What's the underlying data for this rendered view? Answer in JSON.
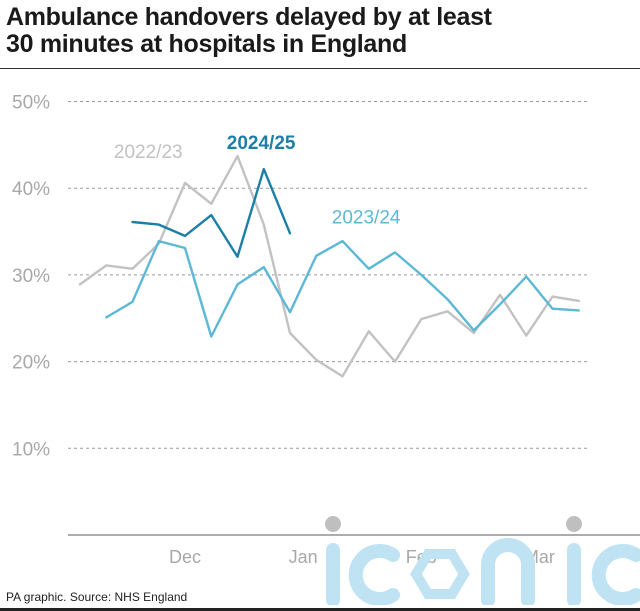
{
  "title_line1": "Ambulance handovers delayed by at least",
  "title_line2": "30 minutes at hospitals in England",
  "source": "PA graphic. Source: NHS England",
  "watermark": "iconic",
  "colors": {
    "s2022": "#c2c2c2",
    "s2023": "#5cb8d6",
    "s2024": "#1b7fa8",
    "grid": "#9a9a9a",
    "axis_text": "#a8a8a8",
    "watermark": "#bfe3f2"
  },
  "chart_data": {
    "type": "line",
    "title": "Ambulance handovers delayed by at least 30 minutes at hospitals in England",
    "ylim": [
      0,
      50
    ],
    "yticks": [
      10,
      20,
      30,
      40,
      50
    ],
    "ytick_labels": [
      "10%",
      "20%",
      "30%",
      "40%",
      "50%"
    ],
    "xticks": [
      {
        "label": "Dec",
        "week": 4
      },
      {
        "label": "Jan",
        "week": 8.5
      },
      {
        "label": "Feb",
        "week": 13
      },
      {
        "label": "Mar",
        "week": 17.5
      }
    ],
    "grid": true,
    "series": [
      {
        "name": "2022/23",
        "color_key": "s2022",
        "label_anchor": 2.6,
        "label_value": 43.5,
        "values": [
          [
            0,
            28.9
          ],
          [
            1,
            31.1
          ],
          [
            2,
            30.7
          ],
          [
            3,
            33.6
          ],
          [
            4,
            40.6
          ],
          [
            5,
            38.2
          ],
          [
            6,
            43.7
          ],
          [
            7,
            35.8
          ],
          [
            8,
            23.3
          ],
          [
            9,
            20.2
          ],
          [
            10,
            18.3
          ],
          [
            11,
            23.5
          ],
          [
            12,
            20.0
          ],
          [
            13,
            24.9
          ],
          [
            14,
            25.8
          ],
          [
            15,
            23.3
          ],
          [
            16,
            27.7
          ],
          [
            17,
            23.0
          ],
          [
            18,
            27.5
          ],
          [
            19,
            27.0
          ]
        ]
      },
      {
        "name": "2023/24",
        "color_key": "s2023",
        "label_anchor": 10.9,
        "label_value": 35.9,
        "values": [
          [
            1,
            25.1
          ],
          [
            2,
            26.9
          ],
          [
            3,
            33.9
          ],
          [
            4,
            33.1
          ],
          [
            5,
            22.9
          ],
          [
            6,
            28.9
          ],
          [
            7,
            30.9
          ],
          [
            8,
            25.7
          ],
          [
            9,
            32.2
          ],
          [
            10,
            33.9
          ],
          [
            11,
            30.7
          ],
          [
            12,
            32.6
          ],
          [
            13,
            30.0
          ],
          [
            14,
            27.2
          ],
          [
            15,
            23.6
          ],
          [
            16,
            26.6
          ],
          [
            17,
            29.8
          ],
          [
            18,
            26.1
          ],
          [
            19,
            25.9
          ]
        ]
      },
      {
        "name": "2024/25",
        "color_key": "s2024",
        "label_anchor": 6.9,
        "label_value": 44.5,
        "values": [
          [
            2,
            36.1
          ],
          [
            3,
            35.8
          ],
          [
            4,
            34.5
          ],
          [
            5,
            36.9
          ],
          [
            6,
            32.1
          ],
          [
            7,
            42.2
          ],
          [
            8,
            34.8
          ]
        ]
      }
    ]
  }
}
